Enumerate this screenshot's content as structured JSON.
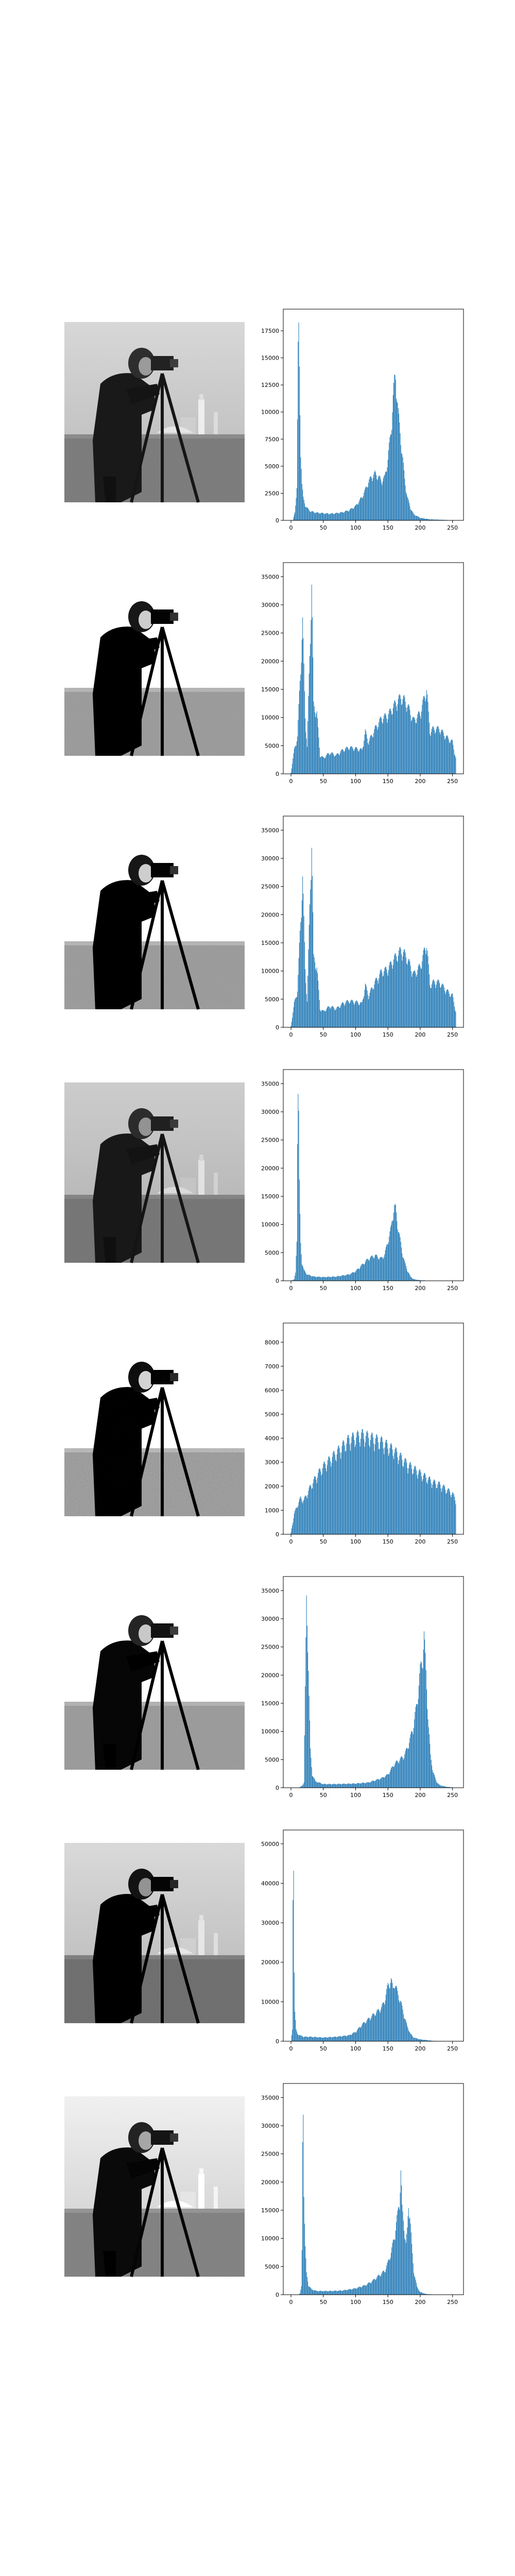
{
  "figure": {
    "panel_count": 8
  },
  "chart_data": [
    {
      "type": "bar",
      "title": "",
      "xlabel": "",
      "ylabel": "",
      "xlim": [
        -12,
        267
      ],
      "ylim": [
        0,
        19500
      ],
      "xticks": [
        0,
        50,
        100,
        150,
        200,
        250
      ],
      "yticks": [
        0,
        2500,
        5000,
        7500,
        10000,
        12500,
        15000,
        17500
      ],
      "peaks": [
        [
          0,
          0
        ],
        [
          3,
          40
        ],
        [
          6,
          800
        ],
        [
          9,
          3200
        ],
        [
          10,
          9500
        ],
        [
          11,
          16500
        ],
        [
          12,
          18500
        ],
        [
          13,
          15000
        ],
        [
          14,
          11000
        ],
        [
          15,
          7000
        ],
        [
          17,
          3500
        ],
        [
          19,
          2200
        ],
        [
          22,
          1500
        ],
        [
          25,
          1200
        ],
        [
          30,
          900
        ],
        [
          40,
          750
        ],
        [
          50,
          700
        ],
        [
          60,
          650
        ],
        [
          70,
          700
        ],
        [
          80,
          800
        ],
        [
          90,
          1000
        ],
        [
          100,
          1400
        ],
        [
          110,
          2300
        ],
        [
          115,
          3000
        ],
        [
          120,
          3800
        ],
        [
          125,
          4300
        ],
        [
          130,
          4600
        ],
        [
          135,
          4300
        ],
        [
          140,
          3900
        ],
        [
          145,
          4200
        ],
        [
          150,
          6000
        ],
        [
          155,
          9000
        ],
        [
          158,
          12000
        ],
        [
          160,
          13500
        ],
        [
          162,
          14300
        ],
        [
          164,
          12500
        ],
        [
          166,
          10500
        ],
        [
          168,
          9200
        ],
        [
          170,
          8000
        ],
        [
          173,
          6000
        ],
        [
          176,
          4000
        ],
        [
          180,
          2300
        ],
        [
          185,
          1200
        ],
        [
          190,
          600
        ],
        [
          200,
          250
        ],
        [
          215,
          100
        ],
        [
          235,
          50
        ],
        [
          255,
          0
        ]
      ],
      "grid": false,
      "legend": "none"
    },
    {
      "type": "bar",
      "title": "",
      "xlabel": "",
      "ylabel": "",
      "xlim": [
        -12,
        267
      ],
      "ylim": [
        0,
        37500
      ],
      "xticks": [
        0,
        50,
        100,
        150,
        200,
        250
      ],
      "yticks": [
        0,
        5000,
        10000,
        15000,
        20000,
        25000,
        30000,
        35000
      ],
      "peaks": [
        [
          0,
          300
        ],
        [
          5,
          4500
        ],
        [
          10,
          7000
        ],
        [
          18,
          28500
        ],
        [
          22,
          11000
        ],
        [
          25,
          5000
        ],
        [
          32,
          36000
        ],
        [
          35,
          13000
        ],
        [
          40,
          11500
        ],
        [
          45,
          3500
        ],
        [
          50,
          3000
        ],
        [
          60,
          4000
        ],
        [
          70,
          3500
        ],
        [
          80,
          4500
        ],
        [
          90,
          5000
        ],
        [
          100,
          4800
        ],
        [
          110,
          4500
        ],
        [
          115,
          8000
        ],
        [
          120,
          6000
        ],
        [
          130,
          8500
        ],
        [
          140,
          10500
        ],
        [
          150,
          11000
        ],
        [
          160,
          13000
        ],
        [
          170,
          14500
        ],
        [
          175,
          14000
        ],
        [
          180,
          13000
        ],
        [
          190,
          10000
        ],
        [
          200,
          11500
        ],
        [
          210,
          16000
        ],
        [
          215,
          8000
        ],
        [
          220,
          8500
        ],
        [
          230,
          8500
        ],
        [
          240,
          7000
        ],
        [
          250,
          6000
        ],
        [
          255,
          3000
        ],
        [
          260,
          2500
        ]
      ],
      "grid": false,
      "legend": "none"
    },
    {
      "type": "bar",
      "title": "",
      "xlabel": "",
      "ylabel": "",
      "xlim": [
        -12,
        267
      ],
      "ylim": [
        0,
        37500
      ],
      "xticks": [
        0,
        50,
        100,
        150,
        200,
        250
      ],
      "yticks": [
        0,
        5000,
        10000,
        15000,
        20000,
        25000,
        30000,
        35000
      ],
      "peaks": [
        [
          0,
          300
        ],
        [
          5,
          4500
        ],
        [
          10,
          7000
        ],
        [
          18,
          28500
        ],
        [
          22,
          11000
        ],
        [
          25,
          5000
        ],
        [
          32,
          36000
        ],
        [
          35,
          13000
        ],
        [
          40,
          11500
        ],
        [
          45,
          3500
        ],
        [
          50,
          3000
        ],
        [
          60,
          4000
        ],
        [
          70,
          3500
        ],
        [
          80,
          4500
        ],
        [
          90,
          5000
        ],
        [
          100,
          4800
        ],
        [
          110,
          4500
        ],
        [
          115,
          8000
        ],
        [
          120,
          6000
        ],
        [
          130,
          8500
        ],
        [
          140,
          10500
        ],
        [
          150,
          11000
        ],
        [
          160,
          13000
        ],
        [
          170,
          14500
        ],
        [
          175,
          14000
        ],
        [
          180,
          13000
        ],
        [
          190,
          10000
        ],
        [
          200,
          11500
        ],
        [
          210,
          16000
        ],
        [
          215,
          8000
        ],
        [
          220,
          8500
        ],
        [
          230,
          8500
        ],
        [
          240,
          7000
        ],
        [
          250,
          6000
        ],
        [
          255,
          3000
        ],
        [
          260,
          2500
        ]
      ],
      "grid": false,
      "legend": "none"
    },
    {
      "type": "bar",
      "title": "",
      "xlabel": "",
      "ylabel": "",
      "xlim": [
        -12,
        267
      ],
      "ylim": [
        0,
        37500
      ],
      "xticks": [
        0,
        50,
        100,
        150,
        200,
        250
      ],
      "yticks": [
        0,
        5000,
        10000,
        15000,
        20000,
        25000,
        30000,
        35000
      ],
      "peaks": [
        [
          0,
          0
        ],
        [
          5,
          300
        ],
        [
          7,
          1500
        ],
        [
          9,
          8000
        ],
        [
          10,
          28500
        ],
        [
          11,
          36000
        ],
        [
          12,
          31000
        ],
        [
          13,
          18000
        ],
        [
          14,
          12000
        ],
        [
          15,
          7000
        ],
        [
          17,
          3500
        ],
        [
          20,
          2000
        ],
        [
          25,
          1200
        ],
        [
          35,
          800
        ],
        [
          50,
          700
        ],
        [
          70,
          800
        ],
        [
          90,
          1200
        ],
        [
          100,
          1800
        ],
        [
          110,
          3000
        ],
        [
          120,
          4200
        ],
        [
          130,
          4800
        ],
        [
          135,
          4500
        ],
        [
          140,
          4200
        ],
        [
          145,
          5000
        ],
        [
          150,
          7500
        ],
        [
          155,
          10000
        ],
        [
          158,
          13000
        ],
        [
          160,
          14000
        ],
        [
          162,
          13500
        ],
        [
          164,
          11500
        ],
        [
          168,
          8500
        ],
        [
          172,
          5500
        ],
        [
          176,
          3500
        ],
        [
          180,
          2000
        ],
        [
          185,
          800
        ],
        [
          190,
          300
        ],
        [
          200,
          100
        ],
        [
          220,
          0
        ]
      ],
      "grid": false,
      "legend": "none"
    },
    {
      "type": "bar",
      "title": "",
      "xlabel": "",
      "ylabel": "",
      "xlim": [
        -12,
        267
      ],
      "ylim": [
        0,
        8800
      ],
      "xticks": [
        0,
        50,
        100,
        150,
        200,
        250
      ],
      "yticks": [
        0,
        1000,
        2000,
        3000,
        4000,
        5000,
        6000,
        7000,
        8000
      ],
      "peaks": [
        [
          0,
          100
        ],
        [
          5,
          900
        ],
        [
          10,
          1300
        ],
        [
          15,
          1600
        ],
        [
          20,
          1500
        ],
        [
          30,
          2100
        ],
        [
          40,
          2600
        ],
        [
          50,
          3000
        ],
        [
          60,
          3300
        ],
        [
          70,
          3600
        ],
        [
          80,
          3900
        ],
        [
          90,
          4200
        ],
        [
          100,
          4300
        ],
        [
          110,
          4400
        ],
        [
          120,
          4300
        ],
        [
          130,
          4200
        ],
        [
          140,
          4100
        ],
        [
          150,
          3900
        ],
        [
          160,
          3700
        ],
        [
          170,
          3400
        ],
        [
          180,
          3100
        ],
        [
          190,
          2900
        ],
        [
          200,
          2700
        ],
        [
          210,
          2500
        ],
        [
          220,
          2300
        ],
        [
          230,
          2200
        ],
        [
          240,
          2000
        ],
        [
          250,
          1800
        ],
        [
          255,
          1500
        ],
        [
          260,
          1200
        ]
      ],
      "grid": false,
      "legend": "none"
    },
    {
      "type": "bar",
      "title": "",
      "xlabel": "",
      "ylabel": "",
      "xlim": [
        -12,
        267
      ],
      "ylim": [
        0,
        37500
      ],
      "xticks": [
        0,
        50,
        100,
        150,
        200,
        250
      ],
      "yticks": [
        0,
        5000,
        10000,
        15000,
        20000,
        25000,
        30000,
        35000
      ],
      "peaks": [
        [
          0,
          0
        ],
        [
          12,
          0
        ],
        [
          15,
          200
        ],
        [
          18,
          500
        ],
        [
          20,
          1000
        ],
        [
          22,
          18000
        ],
        [
          24,
          36000
        ],
        [
          26,
          29000
        ],
        [
          28,
          17000
        ],
        [
          30,
          7000
        ],
        [
          33,
          2500
        ],
        [
          38,
          1200
        ],
        [
          50,
          700
        ],
        [
          70,
          700
        ],
        [
          100,
          800
        ],
        [
          120,
          1000
        ],
        [
          140,
          1800
        ],
        [
          150,
          2500
        ],
        [
          160,
          4500
        ],
        [
          170,
          5500
        ],
        [
          175,
          6000
        ],
        [
          180,
          7500
        ],
        [
          185,
          9500
        ],
        [
          190,
          12000
        ],
        [
          195,
          16000
        ],
        [
          200,
          22000
        ],
        [
          203,
          24000
        ],
        [
          206,
          29000
        ],
        [
          208,
          24000
        ],
        [
          210,
          19000
        ],
        [
          213,
          11500
        ],
        [
          216,
          6000
        ],
        [
          220,
          3000
        ],
        [
          225,
          1200
        ],
        [
          230,
          500
        ],
        [
          240,
          200
        ],
        [
          255,
          0
        ]
      ],
      "grid": false,
      "legend": "none"
    },
    {
      "type": "bar",
      "title": "",
      "xlabel": "",
      "ylabel": "",
      "xlim": [
        -12,
        267
      ],
      "ylim": [
        0,
        53500
      ],
      "xticks": [
        0,
        50,
        100,
        150,
        200,
        250
      ],
      "yticks": [
        0,
        10000,
        20000,
        30000,
        40000,
        50000
      ],
      "peaks": [
        [
          0,
          0
        ],
        [
          2,
          3000
        ],
        [
          3,
          39000
        ],
        [
          4,
          51000
        ],
        [
          5,
          20000
        ],
        [
          6,
          8000
        ],
        [
          8,
          3000
        ],
        [
          10,
          2000
        ],
        [
          15,
          1500
        ],
        [
          20,
          1200
        ],
        [
          30,
          1200
        ],
        [
          50,
          1000
        ],
        [
          70,
          1200
        ],
        [
          90,
          1600
        ],
        [
          100,
          2500
        ],
        [
          110,
          4500
        ],
        [
          120,
          6000
        ],
        [
          130,
          7500
        ],
        [
          140,
          9000
        ],
        [
          145,
          11000
        ],
        [
          150,
          15000
        ],
        [
          155,
          16500
        ],
        [
          158,
          14000
        ],
        [
          160,
          16000
        ],
        [
          165,
          13000
        ],
        [
          170,
          10500
        ],
        [
          175,
          7000
        ],
        [
          180,
          4000
        ],
        [
          185,
          2000
        ],
        [
          190,
          1000
        ],
        [
          200,
          500
        ],
        [
          220,
          100
        ],
        [
          255,
          0
        ]
      ],
      "grid": false,
      "legend": "none"
    },
    {
      "type": "bar",
      "title": "",
      "xlabel": "",
      "ylabel": "",
      "xlim": [
        -12,
        267
      ],
      "ylim": [
        0,
        37500
      ],
      "xticks": [
        0,
        50,
        100,
        150,
        200,
        250
      ],
      "yticks": [
        0,
        5000,
        10000,
        15000,
        20000,
        25000,
        30000,
        35000
      ],
      "peaks": [
        [
          0,
          0
        ],
        [
          12,
          0
        ],
        [
          14,
          300
        ],
        [
          16,
          1500
        ],
        [
          17,
          8000
        ],
        [
          18,
          28500
        ],
        [
          19,
          36000
        ],
        [
          20,
          21000
        ],
        [
          21,
          14000
        ],
        [
          22,
          9000
        ],
        [
          24,
          4000
        ],
        [
          27,
          1800
        ],
        [
          32,
          1000
        ],
        [
          40,
          700
        ],
        [
          60,
          700
        ],
        [
          80,
          800
        ],
        [
          100,
          1200
        ],
        [
          115,
          1800
        ],
        [
          125,
          2500
        ],
        [
          135,
          3500
        ],
        [
          145,
          4500
        ],
        [
          150,
          6000
        ],
        [
          155,
          8000
        ],
        [
          160,
          11000
        ],
        [
          165,
          15000
        ],
        [
          168,
          18000
        ],
        [
          170,
          23500
        ],
        [
          172,
          16000
        ],
        [
          175,
          13000
        ],
        [
          178,
          9500
        ],
        [
          180,
          12000
        ],
        [
          182,
          17000
        ],
        [
          184,
          15500
        ],
        [
          187,
          9000
        ],
        [
          190,
          4500
        ],
        [
          195,
          1500
        ],
        [
          200,
          500
        ],
        [
          210,
          100
        ],
        [
          230,
          0
        ]
      ],
      "grid": false,
      "legend": "none"
    }
  ],
  "colors": {
    "bar": "#1f77b4",
    "axis": "#000000"
  }
}
